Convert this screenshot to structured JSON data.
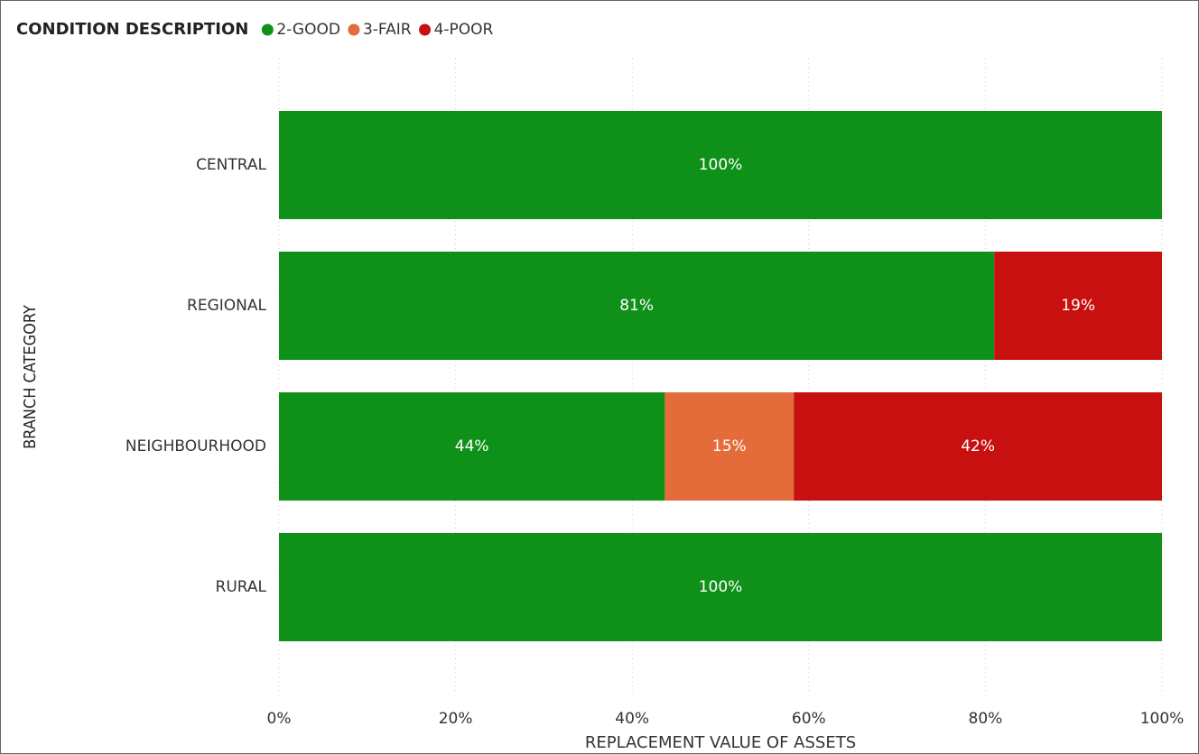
{
  "chart_data": {
    "type": "stacked_barh",
    "legend_title": "CONDITION DESCRIPTION",
    "x_label": "REPLACEMENT VALUE OF ASSETS",
    "y_label": "BRANCH CATEGORY",
    "categories": [
      "CENTRAL",
      "REGIONAL",
      "NEIGHBOURHOOD",
      "RURAL"
    ],
    "series": [
      {
        "name": "2-GOOD",
        "color": "#0f9119",
        "values": [
          100,
          81,
          43.7,
          100
        ],
        "value_labels": [
          "100%",
          "81%",
          "44%",
          "100%"
        ]
      },
      {
        "name": "3-FAIR",
        "color": "#e46c3a",
        "values": [
          null,
          null,
          14.6,
          null
        ],
        "value_labels": [
          null,
          null,
          "15%",
          null
        ]
      },
      {
        "name": "4-POOR",
        "color": "#c91010",
        "values": [
          null,
          19,
          41.7,
          null
        ],
        "value_labels": [
          null,
          "19%",
          "42%",
          null
        ]
      }
    ],
    "xlim": [
      0,
      100
    ],
    "xticks": [
      {
        "value": 0,
        "label": "0%"
      },
      {
        "value": 20,
        "label": "20%"
      },
      {
        "value": 40,
        "label": "40%"
      },
      {
        "value": 60,
        "label": "60%"
      },
      {
        "value": 80,
        "label": "80%"
      },
      {
        "value": 100,
        "label": "100%"
      }
    ],
    "grid": true,
    "legend": "top-left"
  }
}
